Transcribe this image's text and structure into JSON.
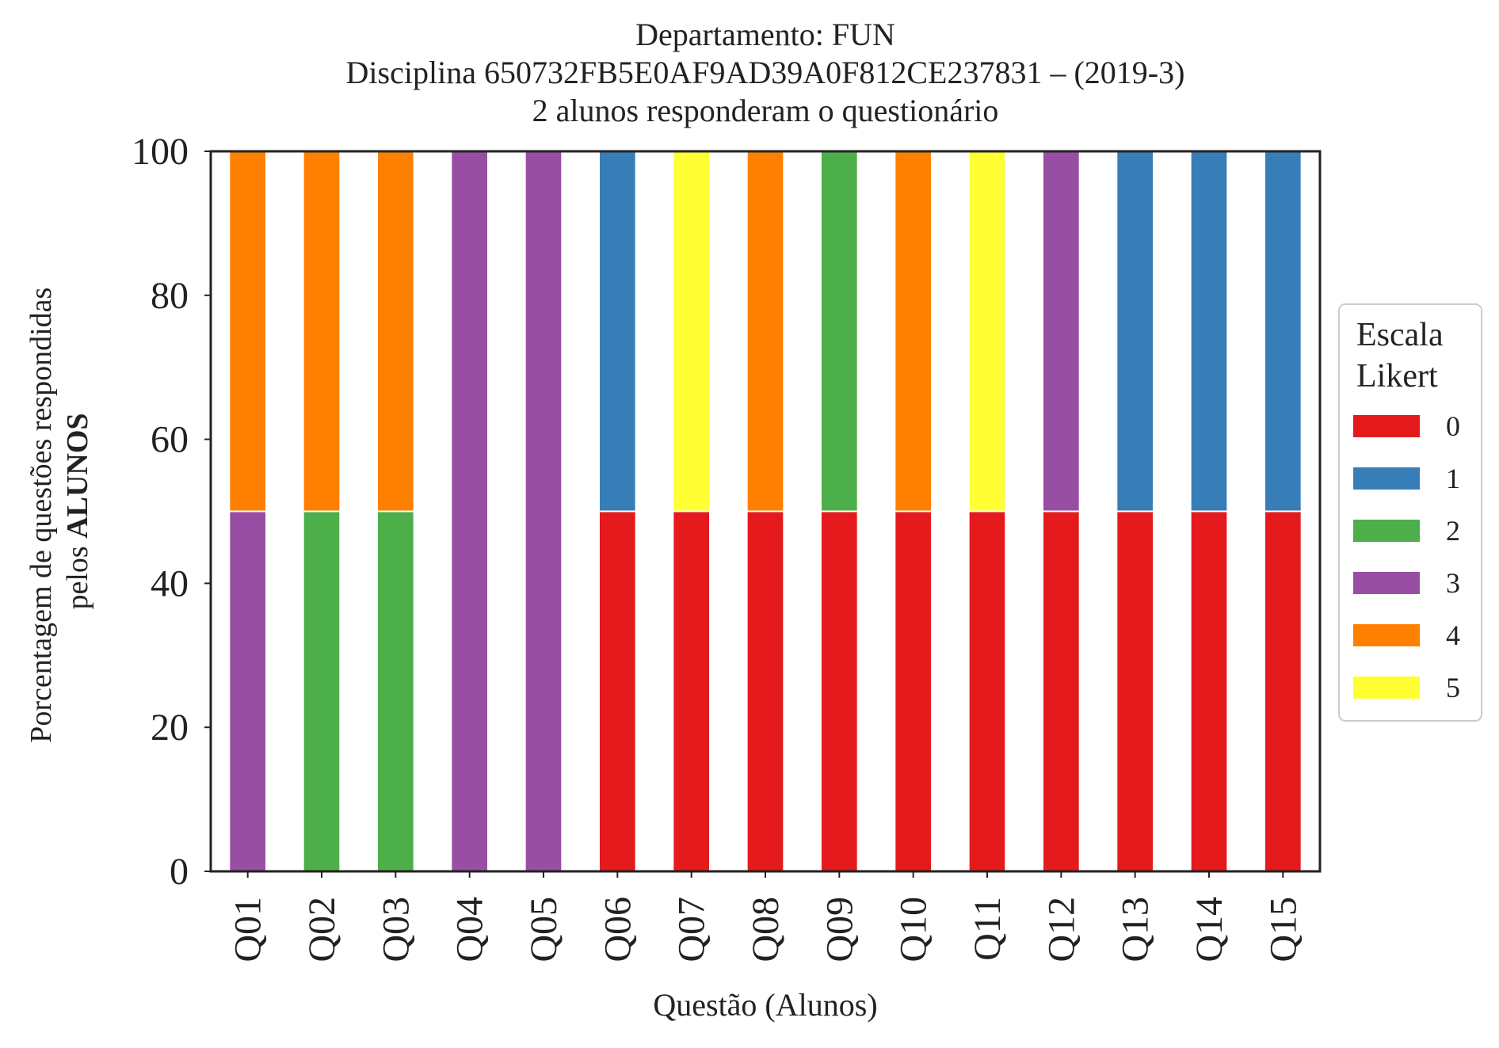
{
  "chart_data": {
    "type": "bar",
    "stacked": true,
    "title_lines": [
      "Departamento: FUN",
      "Disciplina 650732FB5E0AF9AD39A0F812CE237831 – (2019-3)",
      "2 alunos responderam o questionário"
    ],
    "xlabel": "Questão (Alunos)",
    "ylabel_line1": "Porcentagem de questões respondidas",
    "ylabel_line2_prefix": "pelos ",
    "ylabel_line2_bold": "ALUNOS",
    "ylim": [
      0,
      100
    ],
    "yticks": [
      "0",
      "20",
      "40",
      "60",
      "80",
      "100"
    ],
    "grid": false,
    "legend": {
      "title_lines": [
        "Escala",
        "Likert"
      ],
      "position": "right"
    },
    "categories": [
      "Q01",
      "Q02",
      "Q03",
      "Q04",
      "Q05",
      "Q06",
      "Q07",
      "Q08",
      "Q09",
      "Q10",
      "Q11",
      "Q12",
      "Q13",
      "Q14",
      "Q15"
    ],
    "series": [
      {
        "name": "0",
        "color": "#e41a1c",
        "values": [
          0,
          0,
          0,
          0,
          0,
          50,
          50,
          50,
          50,
          50,
          50,
          50,
          50,
          50,
          50
        ]
      },
      {
        "name": "1",
        "color": "#377eb8",
        "values": [
          0,
          0,
          0,
          0,
          0,
          50,
          0,
          0,
          0,
          0,
          0,
          0,
          50,
          50,
          50
        ]
      },
      {
        "name": "2",
        "color": "#4daf4a",
        "values": [
          0,
          50,
          50,
          0,
          0,
          0,
          0,
          0,
          50,
          0,
          0,
          0,
          0,
          0,
          0
        ]
      },
      {
        "name": "3",
        "color": "#984ea3",
        "values": [
          50,
          0,
          0,
          100,
          100,
          0,
          0,
          0,
          0,
          0,
          0,
          50,
          0,
          0,
          0
        ]
      },
      {
        "name": "4",
        "color": "#ff7f00",
        "values": [
          50,
          50,
          50,
          0,
          0,
          0,
          0,
          50,
          0,
          50,
          0,
          0,
          0,
          0,
          0
        ]
      },
      {
        "name": "5",
        "color": "#ffff33",
        "values": [
          0,
          0,
          0,
          0,
          0,
          0,
          50,
          0,
          0,
          0,
          50,
          0,
          0,
          0,
          0
        ]
      }
    ]
  }
}
